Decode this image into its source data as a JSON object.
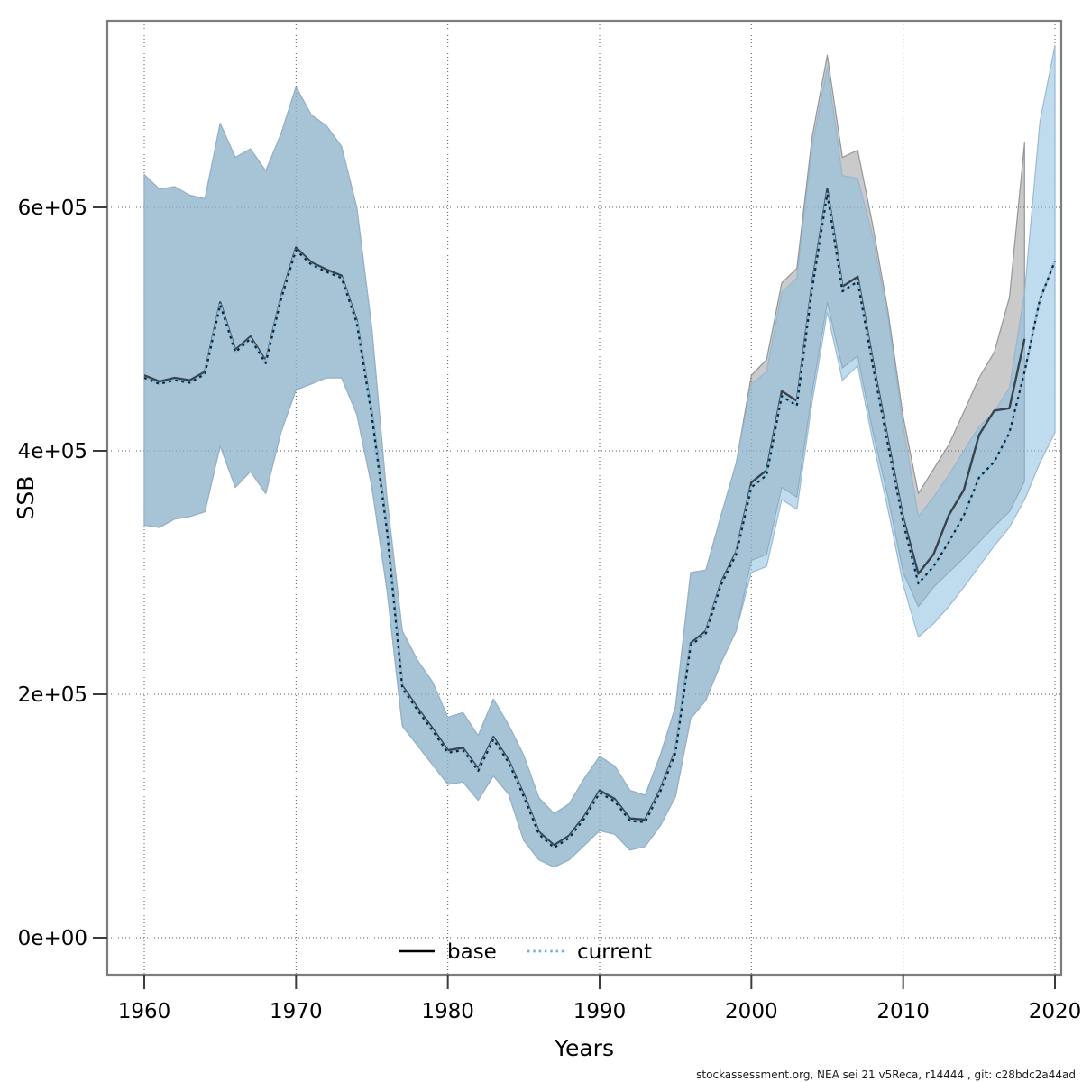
{
  "figure": {
    "background": "#ffffff",
    "footer": "stockassessment.org, NEA sei 21 v5Reca, r14444 , git: c28bdc2a44ad"
  },
  "chart_data": {
    "type": "line",
    "title": "",
    "xlabel": "Years",
    "ylabel": "SSB",
    "grid": "dotted",
    "x_tick_years": [
      1960,
      1970,
      1980,
      1990,
      2000,
      2010,
      2020
    ],
    "y_ticks": [
      {
        "label": "0e+00",
        "value_thousands": 0
      },
      {
        "label": "2e+05",
        "value_thousands": 200
      },
      {
        "label": "4e+05",
        "value_thousands": 400
      },
      {
        "label": "6e+05",
        "value_thousands": 600
      }
    ],
    "xlim": [
      1957.6,
      2020.4
    ],
    "ylim_thousands": [
      -30,
      753
    ],
    "value_units": "SSB, axis labels in scientific notation (e+05); series values stored in thousands",
    "legend": {
      "position": "bottom-center-inside",
      "entries": [
        {
          "label": "base",
          "style": "solid",
          "color": "#000000"
        },
        {
          "label": "current",
          "style": "dotted",
          "color": "#79b1d6"
        }
      ]
    },
    "series": [
      {
        "name": "base",
        "year_start": 1960,
        "year_end": 2018,
        "line_color": "#37444d",
        "band_fill": "rgba(128,128,128,0.42)",
        "band_stroke": "rgba(130,138,142,0.85)",
        "ssb_thousands": [
          462,
          457,
          460,
          458,
          465,
          522,
          483,
          494,
          474,
          526,
          567,
          555,
          549,
          544,
          507,
          430,
          335,
          207,
          189,
          172,
          154,
          156,
          139,
          165,
          146,
          118,
          87,
          76,
          84,
          100,
          121,
          114,
          98,
          97,
          122,
          154,
          242,
          252,
          292,
          317,
          374,
          384,
          449,
          441,
          537,
          615,
          535,
          543,
          474,
          409,
          345,
          299,
          315,
          347,
          368,
          413,
          433,
          435,
          492
        ],
        "ci_lo_thousands": [
          339,
          337,
          344,
          346,
          350,
          404,
          370,
          383,
          365,
          415,
          450,
          455,
          460,
          460,
          430,
          370,
          285,
          174,
          158,
          142,
          126,
          128,
          113,
          133,
          118,
          80,
          64,
          58,
          64,
          76,
          88,
          85,
          72,
          75,
          92,
          116,
          180,
          195,
          226,
          252,
          310,
          315,
          370,
          362,
          448,
          522,
          468,
          478,
          416,
          362,
          300,
          272,
          288,
          300,
          312,
          325,
          338,
          350,
          375
        ],
        "ci_hi_thousands": [
          627,
          615,
          617,
          610,
          607,
          669,
          641,
          648,
          630,
          660,
          699,
          676,
          667,
          650,
          600,
          500,
          360,
          252,
          228,
          210,
          181,
          185,
          166,
          196,
          175,
          150,
          115,
          102,
          110,
          131,
          149,
          141,
          121,
          117,
          150,
          190,
          300,
          302,
          347,
          390,
          462,
          475,
          538,
          550,
          658,
          725,
          641,
          647,
          585,
          515,
          428,
          365,
          385,
          405,
          432,
          460,
          481,
          526,
          653
        ]
      },
      {
        "name": "current",
        "year_start": 1960,
        "year_end": 2020,
        "line_color": "#16222c",
        "line_halo_color": "#8cc0de",
        "band_fill": "rgba(139,192,226,0.55)",
        "band_stroke": "rgba(150,180,205,0.9)",
        "ssb_thousands": [
          460,
          455,
          458,
          456,
          463,
          520,
          481,
          492,
          472,
          524,
          565,
          553,
          547,
          542,
          505,
          428,
          333,
          205,
          187,
          170,
          152,
          154,
          137,
          163,
          144,
          116,
          85,
          74,
          82,
          98,
          119,
          112,
          96,
          95,
          120,
          152,
          240,
          250,
          290,
          315,
          370,
          380,
          445,
          437,
          533,
          611,
          531,
          539,
          470,
          405,
          341,
          291,
          305,
          325,
          347,
          378,
          391,
          415,
          465,
          524,
          556
        ],
        "ci_lo_thousands": [
          339,
          337,
          344,
          346,
          350,
          404,
          370,
          383,
          365,
          415,
          450,
          455,
          460,
          460,
          430,
          370,
          285,
          174,
          158,
          142,
          126,
          128,
          113,
          133,
          118,
          80,
          64,
          58,
          64,
          76,
          88,
          85,
          72,
          75,
          92,
          116,
          180,
          195,
          226,
          252,
          300,
          305,
          360,
          352,
          440,
          514,
          458,
          470,
          408,
          352,
          290,
          247,
          258,
          272,
          288,
          305,
          322,
          337,
          360,
          390,
          415
        ],
        "ci_hi_thousands": [
          627,
          615,
          617,
          610,
          607,
          669,
          641,
          648,
          630,
          660,
          699,
          676,
          667,
          650,
          600,
          500,
          360,
          252,
          228,
          210,
          181,
          185,
          166,
          196,
          175,
          150,
          115,
          102,
          110,
          131,
          149,
          141,
          121,
          117,
          150,
          190,
          300,
          302,
          347,
          390,
          455,
          465,
          530,
          542,
          650,
          715,
          626,
          624,
          576,
          509,
          420,
          346,
          362,
          380,
          400,
          420,
          432,
          452,
          530,
          670,
          733
        ]
      }
    ]
  }
}
